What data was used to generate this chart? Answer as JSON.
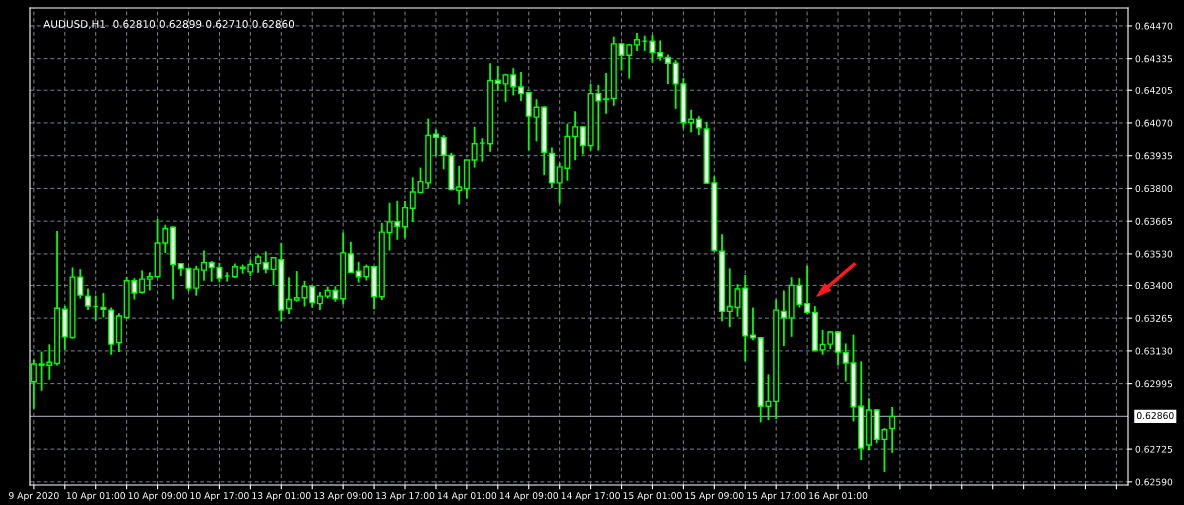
{
  "chart_data": {
    "type": "candlestick",
    "title": "AUDUSD,H1  0.62810 0.62899 0.62710 0.62860",
    "categories": [
      "9 Apr 2020",
      null,
      null,
      null,
      null,
      null,
      null,
      null,
      "10 Apr 01:00",
      null,
      null,
      null,
      null,
      null,
      null,
      null,
      "10 Apr 09:00",
      null,
      null,
      null,
      null,
      null,
      null,
      null,
      "10 Apr 17:00",
      null,
      null,
      null,
      null,
      null,
      null,
      null,
      "13 Apr 01:00",
      null,
      null,
      null,
      null,
      null,
      null,
      null,
      "13 Apr 09:00",
      null,
      null,
      null,
      null,
      null,
      null,
      null,
      "13 Apr 17:00",
      null,
      null,
      null,
      null,
      null,
      null,
      null,
      "14 Apr 01:00",
      null,
      null,
      null,
      null,
      null,
      null,
      null,
      "14 Apr 09:00",
      null,
      null,
      null,
      null,
      null,
      null,
      null,
      "14 Apr 17:00",
      null,
      null,
      null,
      null,
      null,
      null,
      null,
      "15 Apr 01:00",
      null,
      null,
      null,
      null,
      null,
      null,
      null,
      "15 Apr 09:00",
      null,
      null,
      null,
      null,
      null,
      null,
      null,
      "15 Apr 17:00",
      null,
      null,
      null,
      null,
      null,
      null,
      null,
      "16 Apr 01:00",
      null,
      null,
      null,
      null,
      null,
      null,
      null,
      null,
      null,
      null,
      null,
      null,
      null,
      null,
      null,
      null,
      null,
      null,
      null,
      null,
      null,
      null,
      null,
      null,
      null,
      null,
      null,
      null,
      null,
      null,
      null,
      null,
      null,
      null,
      null,
      null,
      null
    ],
    "ohlc": [
      [
        0.63003,
        0.63094,
        0.62892,
        0.63076
      ],
      [
        0.63076,
        0.63127,
        0.62966,
        0.63071
      ],
      [
        0.63071,
        0.63157,
        0.63011,
        0.63083
      ],
      [
        0.63078,
        0.63624,
        0.6307,
        0.63306
      ],
      [
        0.63302,
        0.63315,
        0.63134,
        0.63188
      ],
      [
        0.63185,
        0.63474,
        0.63181,
        0.63434
      ],
      [
        0.63434,
        0.63467,
        0.63346,
        0.6336
      ],
      [
        0.63356,
        0.63387,
        0.63299,
        0.63315
      ],
      [
        0.63313,
        0.63358,
        0.63255,
        0.63313
      ],
      [
        0.63309,
        0.63369,
        0.63268,
        0.63301
      ],
      [
        0.63298,
        0.63309,
        0.63114,
        0.63158
      ],
      [
        0.63164,
        0.63285,
        0.63125,
        0.63274
      ],
      [
        0.63268,
        0.63435,
        0.63266,
        0.63419
      ],
      [
        0.63419,
        0.6343,
        0.63342,
        0.63369
      ],
      [
        0.63372,
        0.63462,
        0.63366,
        0.63426
      ],
      [
        0.63426,
        0.63454,
        0.63379,
        0.63436
      ],
      [
        0.63436,
        0.63674,
        0.63434,
        0.63575
      ],
      [
        0.63575,
        0.6365,
        0.63534,
        0.63635
      ],
      [
        0.6364,
        0.63644,
        0.63342,
        0.63486
      ],
      [
        0.6349,
        0.6349,
        0.63439,
        0.6347
      ],
      [
        0.6347,
        0.63473,
        0.63376,
        0.63389
      ],
      [
        0.63389,
        0.63481,
        0.63358,
        0.63467
      ],
      [
        0.63463,
        0.63544,
        0.63419,
        0.63494
      ],
      [
        0.63494,
        0.63501,
        0.63416,
        0.63474
      ],
      [
        0.63473,
        0.63493,
        0.63413,
        0.6343
      ],
      [
        0.63439,
        0.63454,
        0.63416,
        0.63439
      ],
      [
        0.63436,
        0.6349,
        0.63432,
        0.63477
      ],
      [
        0.6347,
        0.63486,
        0.63448,
        0.63475
      ],
      [
        0.63456,
        0.63506,
        0.63439,
        0.63486
      ],
      [
        0.6349,
        0.63526,
        0.63452,
        0.63517
      ],
      [
        0.63494,
        0.6354,
        0.6345,
        0.63467
      ],
      [
        0.63466,
        0.63514,
        0.634,
        0.63514
      ],
      [
        0.63506,
        0.63575,
        0.63252,
        0.63298
      ],
      [
        0.63305,
        0.63434,
        0.63282,
        0.63342
      ],
      [
        0.6334,
        0.63459,
        0.63333,
        0.63349
      ],
      [
        0.63349,
        0.63419,
        0.63313,
        0.63396
      ],
      [
        0.63396,
        0.63399,
        0.63309,
        0.63329
      ],
      [
        0.63325,
        0.63373,
        0.63299,
        0.63356
      ],
      [
        0.63356,
        0.63395,
        0.63346,
        0.63379
      ],
      [
        0.63379,
        0.63396,
        0.63333,
        0.63345
      ],
      [
        0.63345,
        0.63618,
        0.63322,
        0.63534
      ],
      [
        0.6353,
        0.6358,
        0.63452,
        0.63454
      ],
      [
        0.63459,
        0.63497,
        0.63412,
        0.63436
      ],
      [
        0.63436,
        0.63486,
        0.6342,
        0.63477
      ],
      [
        0.63477,
        0.63477,
        0.63302,
        0.63353
      ],
      [
        0.63353,
        0.63658,
        0.6334,
        0.6362
      ],
      [
        0.63618,
        0.63741,
        0.63544,
        0.63662
      ],
      [
        0.63662,
        0.63749,
        0.63588,
        0.63644
      ],
      [
        0.63642,
        0.63748,
        0.63595,
        0.63721
      ],
      [
        0.63718,
        0.63846,
        0.63662,
        0.63785
      ],
      [
        0.63783,
        0.63886,
        0.63781,
        0.63828
      ],
      [
        0.63823,
        0.64088,
        0.63802,
        0.64018
      ],
      [
        0.64024,
        0.64043,
        0.63933,
        0.64011
      ],
      [
        0.6401,
        0.6402,
        0.63879,
        0.63937
      ],
      [
        0.63936,
        0.63947,
        0.63792,
        0.63795
      ],
      [
        0.63792,
        0.63893,
        0.63734,
        0.63806
      ],
      [
        0.63799,
        0.63917,
        0.63759,
        0.63917
      ],
      [
        0.63917,
        0.64054,
        0.63886,
        0.63984
      ],
      [
        0.63987,
        0.64007,
        0.6391,
        0.63987
      ],
      [
        0.63984,
        0.64316,
        0.63951,
        0.64245
      ],
      [
        0.64246,
        0.64305,
        0.64202,
        0.64233
      ],
      [
        0.64231,
        0.64273,
        0.64157,
        0.64268
      ],
      [
        0.64268,
        0.64296,
        0.64184,
        0.64219
      ],
      [
        0.64218,
        0.6428,
        0.64161,
        0.64191
      ],
      [
        0.64195,
        0.64195,
        0.63957,
        0.64098
      ],
      [
        0.64094,
        0.64168,
        0.63994,
        0.64135
      ],
      [
        0.64135,
        0.64139,
        0.63855,
        0.63949
      ],
      [
        0.63944,
        0.63969,
        0.63802,
        0.63823
      ],
      [
        0.63823,
        0.63906,
        0.63738,
        0.63889
      ],
      [
        0.63883,
        0.64067,
        0.63832,
        0.64014
      ],
      [
        0.64014,
        0.64118,
        0.63916,
        0.64054
      ],
      [
        0.64054,
        0.64054,
        0.6394,
        0.63977
      ],
      [
        0.63977,
        0.64231,
        0.63957,
        0.64191
      ],
      [
        0.64191,
        0.64227,
        0.63956,
        0.64161
      ],
      [
        0.64167,
        0.64276,
        0.64108,
        0.64169
      ],
      [
        0.64171,
        0.64426,
        0.64141,
        0.64396
      ],
      [
        0.64396,
        0.64399,
        0.64286,
        0.64349
      ],
      [
        0.64349,
        0.64396,
        0.64253,
        0.64392
      ],
      [
        0.64392,
        0.64441,
        0.64367,
        0.64413
      ],
      [
        0.64407,
        0.6443,
        0.64367,
        0.64407
      ],
      [
        0.64407,
        0.64433,
        0.64319,
        0.6436
      ],
      [
        0.6436,
        0.6441,
        0.64327,
        0.64343
      ],
      [
        0.6434,
        0.64352,
        0.64231,
        0.64316
      ],
      [
        0.64316,
        0.64329,
        0.64128,
        0.64231
      ],
      [
        0.64231,
        0.64255,
        0.64047,
        0.64071
      ],
      [
        0.64071,
        0.64124,
        0.64031,
        0.64085
      ],
      [
        0.64085,
        0.64098,
        0.6402,
        0.6405
      ],
      [
        0.64045,
        0.64074,
        0.63819,
        0.63822
      ],
      [
        0.63823,
        0.6385,
        0.63541,
        0.63544
      ],
      [
        0.63541,
        0.63611,
        0.63252,
        0.63293
      ],
      [
        0.63293,
        0.6347,
        0.63228,
        0.63313
      ],
      [
        0.63309,
        0.63405,
        0.63271,
        0.63385
      ],
      [
        0.63389,
        0.63443,
        0.63087,
        0.63192
      ],
      [
        0.63195,
        0.63309,
        0.63174,
        0.63184
      ],
      [
        0.63184,
        0.63184,
        0.62835,
        0.62902
      ],
      [
        0.62902,
        0.63033,
        0.62845,
        0.62922
      ],
      [
        0.62922,
        0.63342,
        0.62849,
        0.63298
      ],
      [
        0.63293,
        0.63379,
        0.6315,
        0.63266
      ],
      [
        0.63266,
        0.63434,
        0.63188,
        0.634
      ],
      [
        0.634,
        0.6343,
        0.63309,
        0.63322
      ],
      [
        0.63325,
        0.63481,
        0.63282,
        0.63289
      ],
      [
        0.63289,
        0.63315,
        0.63131,
        0.63131
      ],
      [
        0.63134,
        0.63217,
        0.63114,
        0.63157
      ],
      [
        0.63158,
        0.63212,
        0.63137,
        0.63208
      ],
      [
        0.63208,
        0.63212,
        0.63071,
        0.63125
      ],
      [
        0.63123,
        0.63161,
        0.63004,
        0.6308
      ],
      [
        0.6308,
        0.63197,
        0.62839,
        0.62899
      ],
      [
        0.62902,
        0.63087,
        0.6268,
        0.62729
      ],
      [
        0.62742,
        0.62935,
        0.62721,
        0.62886
      ],
      [
        0.62886,
        0.6289,
        0.62749,
        0.62765
      ],
      [
        0.62765,
        0.62812,
        0.62631,
        0.62805
      ],
      [
        0.6281,
        0.62899,
        0.6271,
        0.6286
      ],
      null,
      null,
      null,
      null,
      null,
      null,
      null,
      null,
      null,
      null,
      null,
      null,
      null,
      null,
      null,
      null,
      null,
      null,
      null,
      null,
      null,
      null,
      null,
      null,
      null,
      null,
      null,
      null,
      null,
      null
    ],
    "ylim": [
      0.62577,
      0.64544
    ],
    "yticks": [
      {
        "value": 0.6447,
        "label": "0.64470"
      },
      {
        "value": 0.64335,
        "label": "0.64335"
      },
      {
        "value": 0.64205,
        "label": "0.64205"
      },
      {
        "value": 0.6407,
        "label": "0.64070"
      },
      {
        "value": 0.63935,
        "label": "0.63935"
      },
      {
        "value": 0.638,
        "label": "0.63800"
      },
      {
        "value": 0.63665,
        "label": "0.63665"
      },
      {
        "value": 0.6353,
        "label": "0.63530"
      },
      {
        "value": 0.634,
        "label": "0.63400"
      },
      {
        "value": 0.63265,
        "label": "0.63265"
      },
      {
        "value": 0.6313,
        "label": "0.63130"
      },
      {
        "value": 0.62995,
        "label": "0.62995"
      },
      {
        "value": 0.62725,
        "label": "0.62725"
      },
      {
        "value": 0.6259,
        "label": "0.62590"
      }
    ],
    "ref_lines": [
      {
        "axis": "y",
        "value": 0.6286,
        "label": "0.62860",
        "color": "#8c96a0",
        "line_style": "solid"
      }
    ],
    "grid": true
  }
}
